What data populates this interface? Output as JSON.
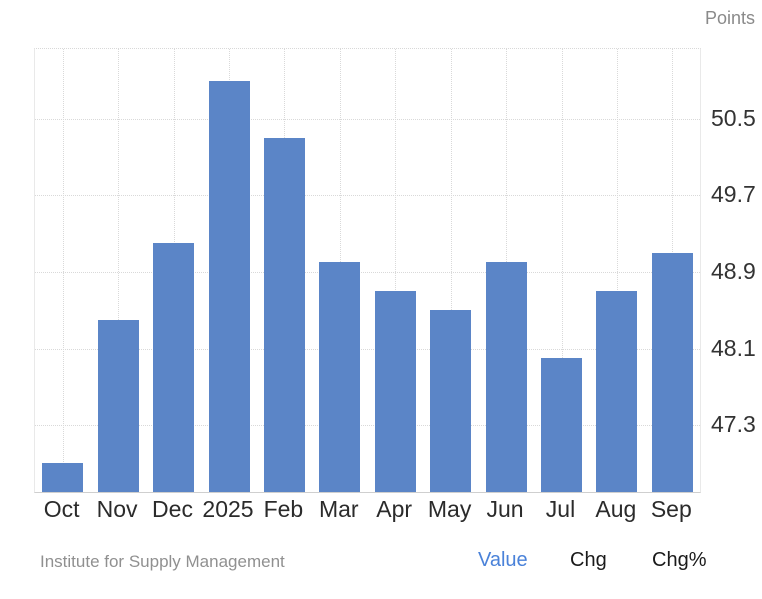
{
  "chart_data": {
    "type": "bar",
    "title": "",
    "categories": [
      "Oct",
      "Nov",
      "Dec",
      "2025",
      "Feb",
      "Mar",
      "Apr",
      "May",
      "Jun",
      "Jul",
      "Aug",
      "Sep"
    ],
    "values": [
      46.9,
      48.4,
      49.2,
      50.9,
      50.3,
      49.0,
      48.7,
      48.5,
      49.0,
      48.0,
      48.7,
      49.1
    ],
    "xlabel": "",
    "ylabel": "Points",
    "yticks": [
      50.5,
      49.7,
      48.9,
      48.1,
      47.3
    ],
    "ylim": [
      46.6,
      51.23
    ],
    "grid": true,
    "legend_position": "none",
    "bar_color": "#5b85c7",
    "gridline_color": "#d9d9d9"
  },
  "footer": {
    "source": "Institute for Supply Management",
    "tabs": [
      {
        "label": "Value",
        "active": true,
        "color": "#4a82d9"
      },
      {
        "label": "Chg",
        "active": false,
        "color": "#1a1a1a"
      },
      {
        "label": "Chg%",
        "active": false,
        "color": "#1a1a1a"
      }
    ]
  }
}
